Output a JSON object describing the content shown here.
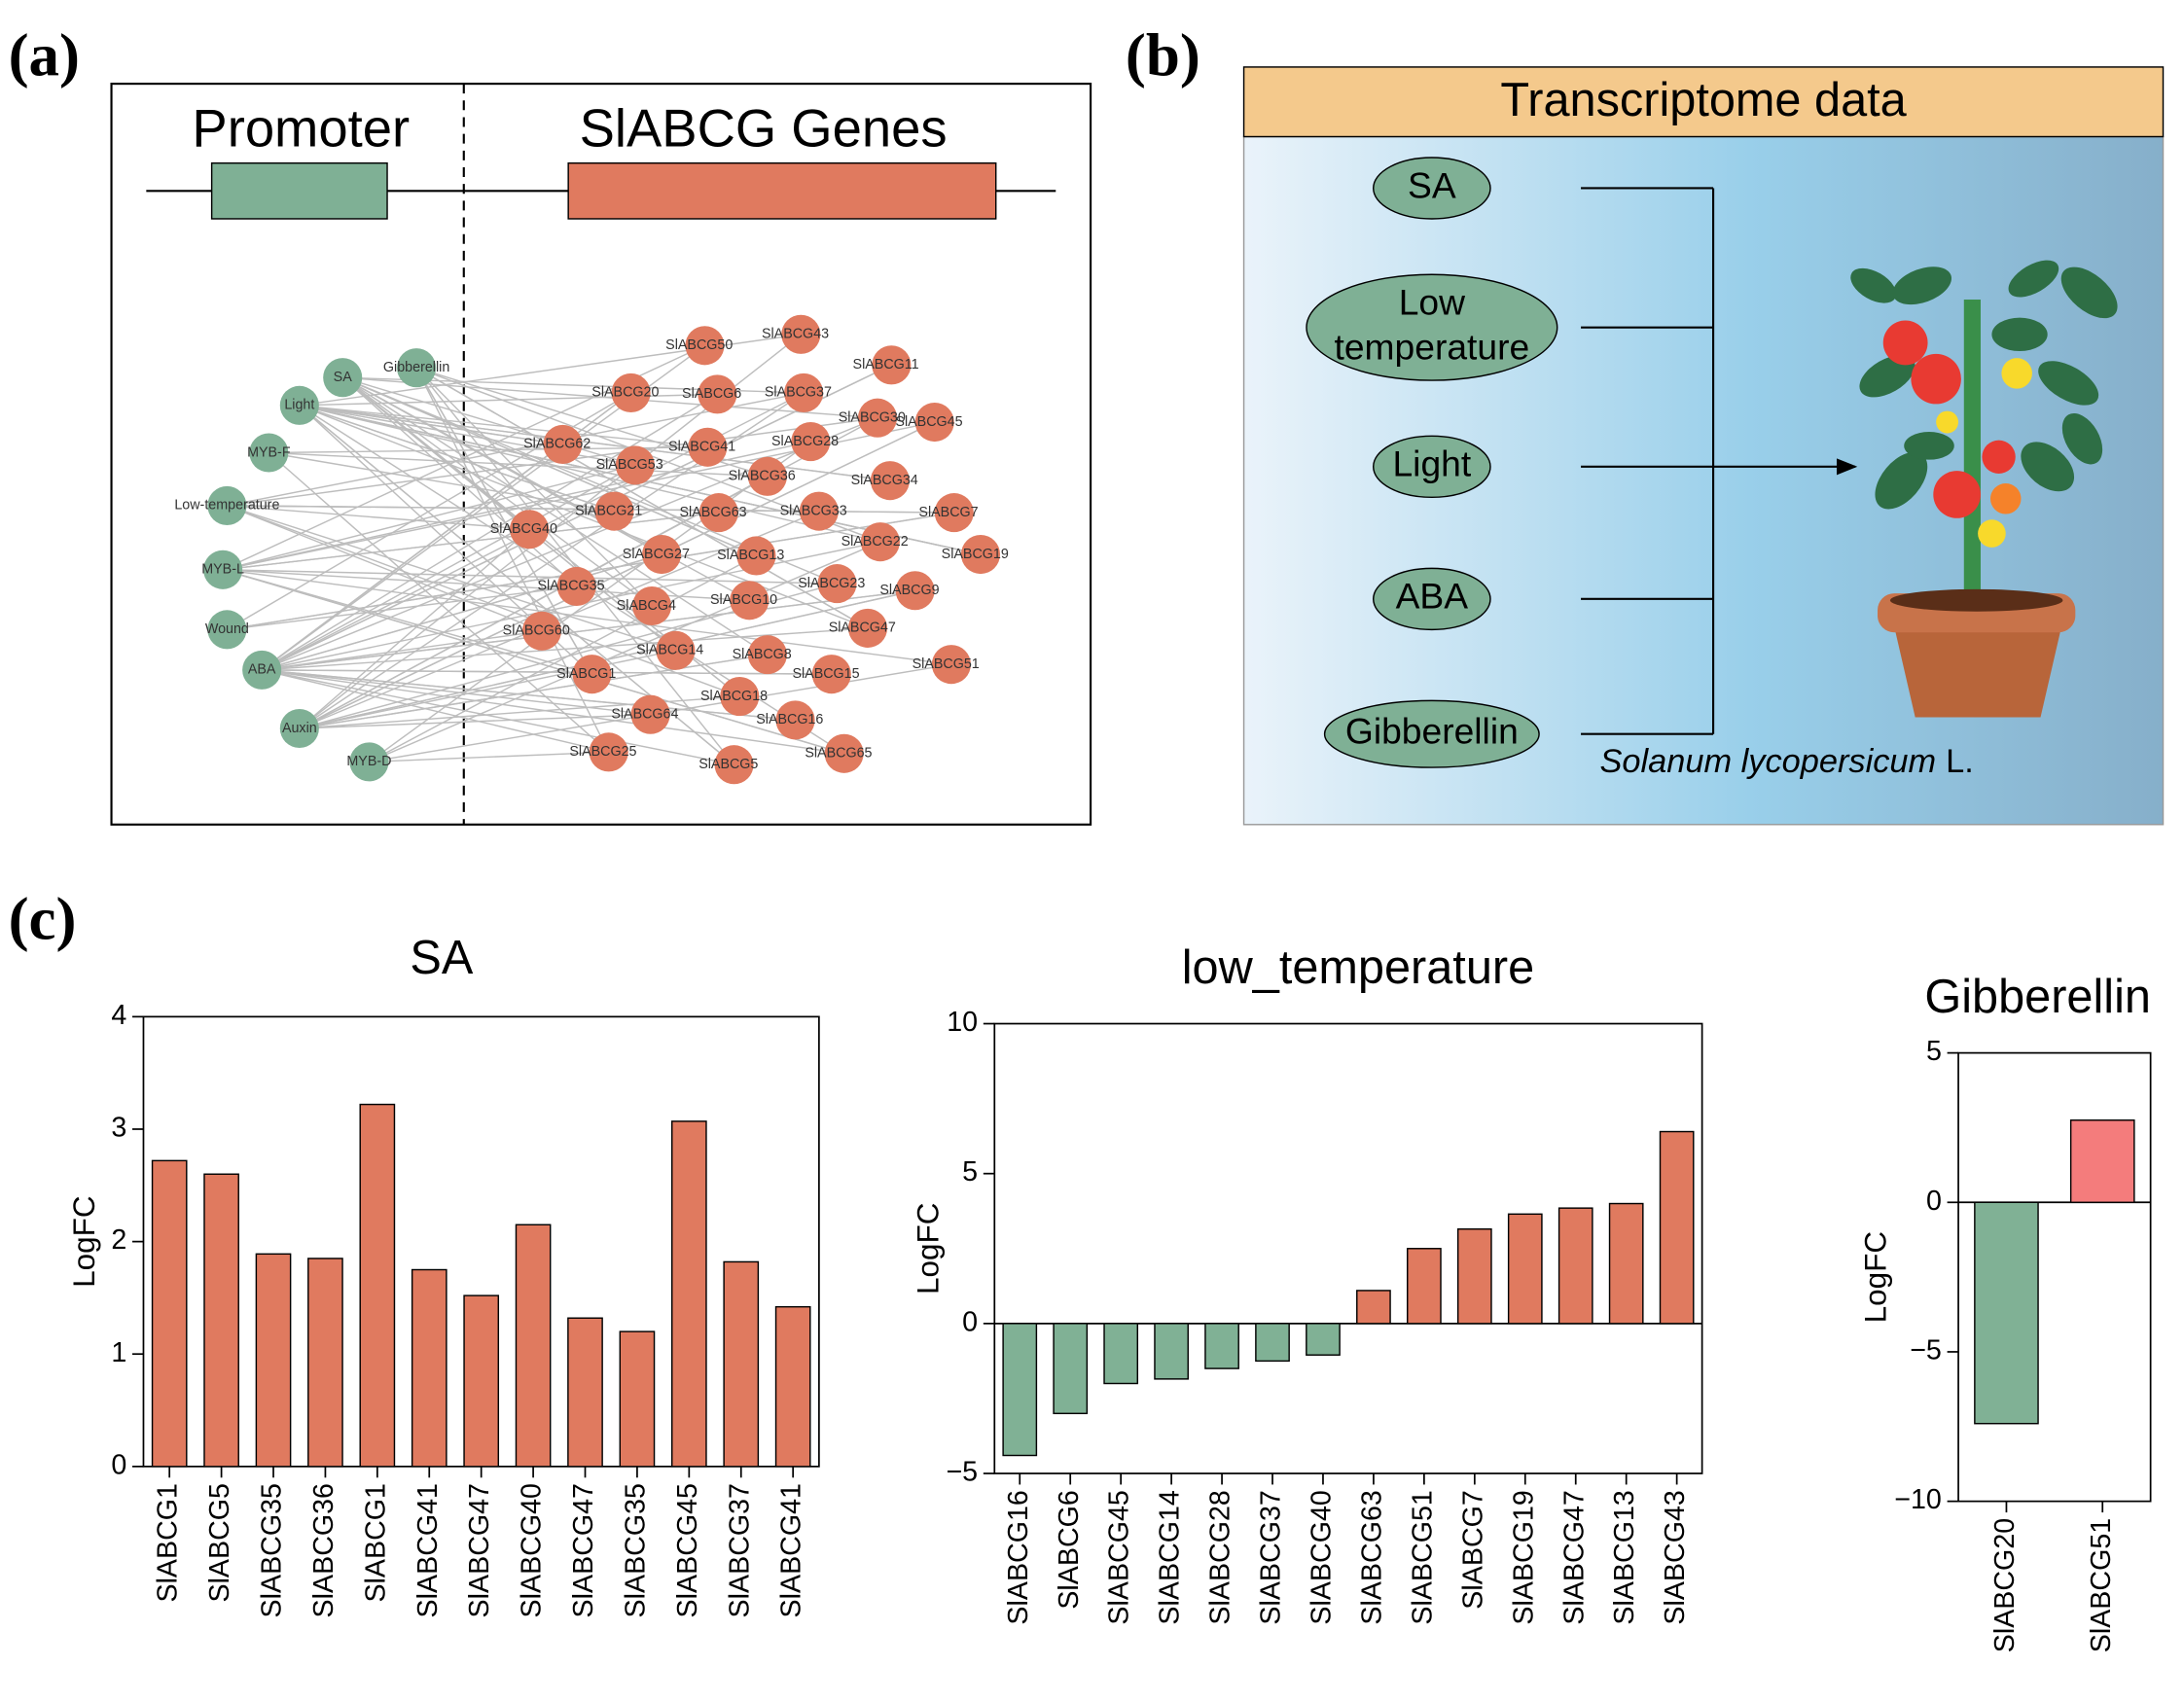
{
  "panel_labels": [
    "(a)",
    "(b)",
    "(c)"
  ],
  "network": {
    "promoter_label": "Promoter",
    "genes_label": "SlABCG Genes",
    "factors": [
      "SA",
      "Gibberellin",
      "Light",
      "MYB-F",
      "Low-temperature",
      "MYB-L",
      "Wound",
      "ABA",
      "Auxin",
      "MYB-D"
    ],
    "genes": [
      "SlABCG43",
      "SlABCG50",
      "SlABCG11",
      "SlABCG20",
      "SlABCG6",
      "SlABCG37",
      "SlABCG30",
      "SlABCG45",
      "SlABCG62",
      "SlABCG41",
      "SlABCG28",
      "SlABCG53",
      "SlABCG36",
      "SlABCG34",
      "SlABCG40",
      "SlABCG21",
      "SlABCG63",
      "SlABCG33",
      "SlABCG7",
      "SlABCG22",
      "SlABCG19",
      "SlABCG27",
      "SlABCG13",
      "SlABCG35",
      "SlABCG23",
      "SlABCG9",
      "SlABCG4",
      "SlABCG10",
      "SlABCG60",
      "SlABCG47",
      "SlABCG14",
      "SlABCG8",
      "SlABCG51",
      "SlABCG1",
      "SlABCG15",
      "SlABCG18",
      "SlABCG64",
      "SlABCG16",
      "SlABCG25",
      "SlABCG5",
      "SlABCG65"
    ]
  },
  "diagram": {
    "header": "Transcriptome data",
    "treatments": [
      "SA",
      "Low temperature",
      "Light",
      "ABA",
      "Gibberellin"
    ],
    "species": "Solanum lycopersicum",
    "authority": "L."
  },
  "chart_data": [
    {
      "type": "bar",
      "title": "SA",
      "ylabel": "LogFC",
      "categories": [
        "SlABCG1",
        "SlABCG5",
        "SlABCG35",
        "SlABCG36",
        "SlABCG1",
        "SlABCG41",
        "SlABCG47",
        "SlABCG40",
        "SlABCG47",
        "SlABCG35",
        "SlABCG45",
        "SlABCG37",
        "SlABCG41"
      ],
      "values": [
        2.72,
        2.6,
        1.89,
        1.85,
        3.22,
        1.75,
        1.52,
        2.15,
        1.32,
        1.2,
        3.07,
        1.82,
        1.42
      ],
      "positive_color": "#e07a5f",
      "negative_color": "#80b195",
      "ylim": [
        0,
        4
      ],
      "yticks": [
        0,
        1,
        2,
        3,
        4
      ]
    },
    {
      "type": "bar",
      "title": "low_temperature",
      "ylabel": "LogFC",
      "categories": [
        "SlABCG16",
        "SlABCG6",
        "SlABCG45",
        "SlABCG14",
        "SlABCG28",
        "SlABCG37",
        "SlABCG40",
        "SlABCG63",
        "SlABCG51",
        "SlABCG7",
        "SlABCG19",
        "SlABCG47",
        "SlABCG13",
        "SlABCG43"
      ],
      "values": [
        -4.4,
        -3.0,
        -2.0,
        -1.85,
        -1.5,
        -1.25,
        -1.05,
        1.1,
        2.5,
        3.15,
        3.65,
        3.85,
        4.0,
        6.4
      ],
      "positive_color": "#e07a5f",
      "negative_color": "#80b195",
      "ylim": [
        -5,
        10
      ],
      "yticks": [
        {
          "value": -5,
          "label": "−5"
        },
        0,
        5,
        10
      ]
    },
    {
      "type": "bar",
      "title": "Gibberellin",
      "ylabel": "LogFC",
      "categories": [
        "SlABCG20",
        "SlABCG51"
      ],
      "values": [
        -7.4,
        2.75
      ],
      "positive_color": "#f47c7c",
      "negative_color": "#80b195",
      "ylim": [
        -10,
        5
      ],
      "yticks": [
        {
          "value": -10,
          "label": "−10"
        },
        {
          "value": -5,
          "label": "−5"
        },
        0,
        5
      ]
    }
  ]
}
